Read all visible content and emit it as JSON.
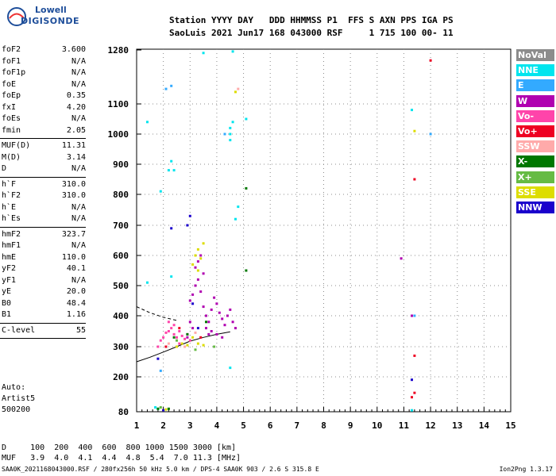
{
  "logo": {
    "line1": "Lowell",
    "line2": "DIGISONDE"
  },
  "header": {
    "line1": "Station YYYY DAY   DDD HHMMSS P1  FFS S AXN PPS IGA PS",
    "line2": "SaoLuis 2021 Jun17 168 043000 RSF     1 715 100 00- 11"
  },
  "params": [
    {
      "name": "foF2",
      "value": "3.600"
    },
    {
      "name": "foF1",
      "value": "N/A"
    },
    {
      "name": "foF1p",
      "value": "N/A"
    },
    {
      "name": "foE",
      "value": "N/A"
    },
    {
      "name": "foEp",
      "value": "0.35"
    },
    {
      "name": "fxI",
      "value": "4.20"
    },
    {
      "name": "foEs",
      "value": "N/A"
    },
    {
      "name": "fmin",
      "value": "2.05"
    },
    {
      "sep": true
    },
    {
      "name": "MUF(D)",
      "value": "11.31"
    },
    {
      "name": "M(D)",
      "value": "3.14"
    },
    {
      "name": "D",
      "value": "N/A"
    },
    {
      "sep": true
    },
    {
      "name": "h`F",
      "value": "310.0"
    },
    {
      "name": "h`F2",
      "value": "310.0"
    },
    {
      "name": "h`E",
      "value": "N/A"
    },
    {
      "name": "h`Es",
      "value": "N/A"
    },
    {
      "sep": true
    },
    {
      "name": "hmF2",
      "value": "323.7"
    },
    {
      "name": "hmF1",
      "value": "N/A"
    },
    {
      "name": "hmE",
      "value": "110.0"
    },
    {
      "name": "yF2",
      "value": "40.1"
    },
    {
      "name": "yF1",
      "value": "N/A"
    },
    {
      "name": "yE",
      "value": "20.0"
    },
    {
      "name": "B0",
      "value": "48.4"
    },
    {
      "name": "B1",
      "value": "1.16"
    },
    {
      "sep": true
    },
    {
      "name": "C-level",
      "value": "55"
    },
    {
      "sep": true
    }
  ],
  "auto": {
    "line1": "Auto:",
    "line2": "Artist5",
    "line3": "500200"
  },
  "legend": [
    {
      "label": "NoVal",
      "color": "#8c8c8c"
    },
    {
      "label": "NNE",
      "color": "#00e5ee"
    },
    {
      "label": "E",
      "color": "#33aaff"
    },
    {
      "label": "W",
      "color": "#b000b0"
    },
    {
      "label": "Vo-",
      "color": "#ff44aa"
    },
    {
      "label": "Vo+",
      "color": "#ee0022"
    },
    {
      "label": "SSW",
      "color": "#ffaaaa"
    },
    {
      "label": "X-",
      "color": "#007700"
    },
    {
      "label": "X+",
      "color": "#66bb44"
    },
    {
      "label": "SSE",
      "color": "#dddd00"
    },
    {
      "label": "NNW",
      "color": "#1a00cc"
    }
  ],
  "bottom": {
    "d_row": "D     100  200  400  600  800 1000 1500 3000 [km]",
    "muf_row": "MUF   3.9  4.0  4.1  4.4  4.8  5.4  7.0 11.3 [MHz]"
  },
  "footer": "SAA0K_2021168043000.RSF / 280fx256h 50 kHz 5.0 km / DPS-4 SAA0K 903 / 2.6 S 315.8 E",
  "version": "Ion2Png 1.3.17",
  "chart_data": {
    "type": "scatter",
    "title": "",
    "xlabel": "",
    "ylabel": "",
    "xlim": [
      1,
      15
    ],
    "ylim": [
      80,
      1280
    ],
    "x_ticks": [
      1,
      2,
      3,
      4,
      5,
      6,
      7,
      8,
      9,
      10,
      11,
      12,
      13,
      14,
      15
    ],
    "y_ticks": [
      80,
      200,
      300,
      400,
      500,
      600,
      700,
      800,
      900,
      1000,
      1100,
      1280
    ],
    "y_scale": "nonlinear (ionogram virtual height)",
    "grid": true,
    "legend_position": "right",
    "series": [
      {
        "name": "W",
        "color": "#b000b0",
        "points": [
          [
            3.0,
            450
          ],
          [
            3.1,
            470
          ],
          [
            3.2,
            500
          ],
          [
            3.3,
            520
          ],
          [
            3.4,
            480
          ],
          [
            3.5,
            430
          ],
          [
            3.6,
            400
          ],
          [
            3.7,
            380
          ],
          [
            3.8,
            420
          ],
          [
            3.9,
            460
          ],
          [
            4.0,
            440
          ],
          [
            4.1,
            410
          ],
          [
            4.2,
            390
          ],
          [
            4.3,
            370
          ],
          [
            4.4,
            400
          ],
          [
            4.5,
            420
          ],
          [
            3.2,
            560
          ],
          [
            3.3,
            580
          ],
          [
            3.5,
            540
          ],
          [
            3.6,
            360
          ],
          [
            3.8,
            350
          ],
          [
            4.0,
            340
          ],
          [
            4.2,
            330
          ],
          [
            2.9,
            330
          ],
          [
            3.1,
            360
          ],
          [
            3.4,
            600
          ],
          [
            4.6,
            380
          ],
          [
            4.7,
            360
          ],
          [
            3.0,
            380
          ],
          [
            3.7,
            340
          ],
          [
            11.3,
            400
          ],
          [
            10.9,
            590
          ]
        ]
      },
      {
        "name": "Vo-",
        "color": "#ff44aa",
        "points": [
          [
            2.0,
            330
          ],
          [
            2.1,
            345
          ],
          [
            2.2,
            350
          ],
          [
            2.3,
            360
          ],
          [
            2.4,
            340
          ],
          [
            2.5,
            330
          ],
          [
            2.6,
            350
          ],
          [
            2.7,
            335
          ],
          [
            2.8,
            325
          ],
          [
            2.2,
            380
          ],
          [
            2.4,
            370
          ],
          [
            1.9,
            320
          ],
          [
            2.6,
            310
          ],
          [
            2.9,
            340
          ],
          [
            3.0,
            320
          ],
          [
            1.8,
            300
          ]
        ]
      },
      {
        "name": "Vo+",
        "color": "#ee0022",
        "points": [
          [
            2.1,
            300
          ],
          [
            2.6,
            360
          ],
          [
            3.4,
            330
          ],
          [
            12.0,
            1245
          ],
          [
            11.4,
            850
          ],
          [
            11.4,
            270
          ],
          [
            11.3,
            130
          ],
          [
            11.4,
            145
          ]
        ]
      },
      {
        "name": "SSE",
        "color": "#dddd00",
        "points": [
          [
            3.2,
            600
          ],
          [
            3.3,
            620
          ],
          [
            3.4,
            590
          ],
          [
            3.5,
            640
          ],
          [
            3.1,
            570
          ],
          [
            3.3,
            550
          ],
          [
            2.5,
            300
          ],
          [
            2.7,
            310
          ],
          [
            2.9,
            305
          ],
          [
            3.1,
            330
          ],
          [
            3.3,
            310
          ],
          [
            3.5,
            305
          ],
          [
            2.0,
            85
          ],
          [
            2.1,
            88
          ],
          [
            4.7,
            1140
          ],
          [
            11.4,
            1010
          ]
        ]
      },
      {
        "name": "NNE",
        "color": "#00e5ee",
        "points": [
          [
            1.7,
            95
          ],
          [
            1.8,
            90
          ],
          [
            2.2,
            880
          ],
          [
            2.3,
            910
          ],
          [
            4.5,
            1020
          ],
          [
            4.5,
            1000
          ],
          [
            4.5,
            980
          ],
          [
            4.6,
            1040
          ],
          [
            4.7,
            720
          ],
          [
            4.8,
            760
          ],
          [
            3.5,
            1270
          ],
          [
            4.6,
            1275
          ],
          [
            1.4,
            1040
          ],
          [
            1.9,
            810
          ],
          [
            2.4,
            880
          ],
          [
            11.3,
            1080
          ],
          [
            11.3,
            85
          ],
          [
            1.4,
            510
          ],
          [
            4.5,
            230
          ],
          [
            5.1,
            1050
          ],
          [
            2.3,
            530
          ]
        ]
      },
      {
        "name": "E",
        "color": "#33aaff",
        "points": [
          [
            2.1,
            1150
          ],
          [
            2.3,
            1160
          ],
          [
            4.3,
            1000
          ],
          [
            11.4,
            400
          ],
          [
            12.0,
            1000
          ],
          [
            1.9,
            220
          ]
        ]
      },
      {
        "name": "X-",
        "color": "#007700",
        "points": [
          [
            2.4,
            330
          ],
          [
            2.9,
            340
          ],
          [
            3.6,
            380
          ],
          [
            5.1,
            550
          ],
          [
            5.1,
            820
          ],
          [
            1.8,
            90
          ],
          [
            2.2,
            90
          ]
        ]
      },
      {
        "name": "X+",
        "color": "#66bb44",
        "points": [
          [
            2.5,
            320
          ],
          [
            3.2,
            290
          ],
          [
            3.9,
            300
          ],
          [
            1.9,
            95
          ]
        ]
      },
      {
        "name": "NNW",
        "color": "#1a00cc",
        "points": [
          [
            3.1,
            440
          ],
          [
            2.9,
            700
          ],
          [
            3.0,
            730
          ],
          [
            1.8,
            260
          ],
          [
            2.0,
            85
          ],
          [
            2.3,
            690
          ],
          [
            3.3,
            360
          ],
          [
            11.3,
            190
          ]
        ]
      },
      {
        "name": "SSW",
        "color": "#ffaaaa",
        "points": [
          [
            2.2,
            310
          ],
          [
            2.8,
            300
          ],
          [
            3.2,
            345
          ],
          [
            4.8,
            1150
          ]
        ]
      }
    ],
    "curves": [
      {
        "name": "profile",
        "color": "#000000",
        "points": [
          [
            1.0,
            250
          ],
          [
            1.5,
            265
          ],
          [
            2.0,
            282
          ],
          [
            2.5,
            300
          ],
          [
            3.0,
            318
          ],
          [
            3.5,
            330
          ],
          [
            4.0,
            340
          ],
          [
            4.5,
            348
          ]
        ]
      },
      {
        "name": "extrapolated",
        "color": "#000000",
        "style": "dashed",
        "points": [
          [
            1.0,
            430
          ],
          [
            1.5,
            410
          ],
          [
            2.0,
            395
          ],
          [
            2.5,
            385
          ]
        ]
      }
    ]
  }
}
